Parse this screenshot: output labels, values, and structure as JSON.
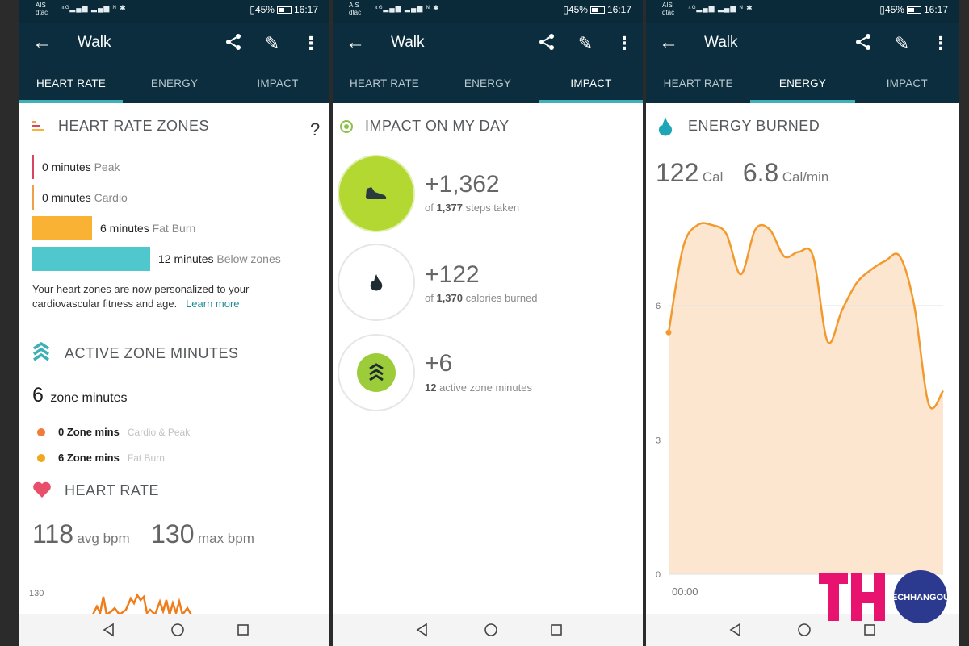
{
  "status": {
    "carrier1": "AIS",
    "carrier2": "dtac",
    "battery": "45%",
    "time": "16:17"
  },
  "screens": [
    {
      "title": "Walk",
      "tabs": [
        "HEART RATE",
        "ENERGY",
        "IMPACT"
      ],
      "active_tab": 0,
      "heart_rate_zones": {
        "title": "HEART RATE ZONES",
        "help": "?",
        "zones": [
          {
            "value": "0 minutes",
            "label": "Peak",
            "color": "#d9455f"
          },
          {
            "value": "0 minutes",
            "label": "Cardio",
            "color": "#f0a04b"
          },
          {
            "value": "6 minutes",
            "label": "Fat Burn",
            "color": "#f9b233"
          },
          {
            "value": "12 minutes",
            "label": "Below zones",
            "color": "#4fc7cc"
          }
        ],
        "note": "Your heart zones are now personalized to your cardiovascular fitness and age.",
        "learn_more": "Learn more"
      },
      "active_zone": {
        "title": "ACTIVE ZONE MINUTES",
        "count": "6",
        "count_label": "zone minutes",
        "items": [
          {
            "value": "0 Zone mins",
            "label": "Cardio & Peak",
            "color": "#f07c3a"
          },
          {
            "value": "6 Zone mins",
            "label": "Fat Burn",
            "color": "#f0a81c"
          }
        ]
      },
      "heart_rate": {
        "title": "HEART RATE",
        "avg": "118",
        "avg_unit": "avg bpm",
        "max": "130",
        "max_unit": "max bpm",
        "axis_label": "130"
      }
    },
    {
      "title": "Walk",
      "tabs": [
        "HEART RATE",
        "ENERGY",
        "IMPACT"
      ],
      "active_tab": 2,
      "impact": {
        "title": "IMPACT ON MY DAY",
        "items": [
          {
            "value": "+1,362",
            "sub_bold": "1,377",
            "sub_pre": "of ",
            "sub_post": " steps taken",
            "icon": "shoe-icon"
          },
          {
            "value": "+122",
            "sub_bold": "1,370",
            "sub_pre": "of ",
            "sub_post": " calories burned",
            "icon": "flame-icon"
          },
          {
            "value": "+6",
            "sub_bold": "12",
            "sub_pre": "",
            "sub_post": " active zone minutes",
            "icon": "zone-chevrons-icon"
          }
        ]
      }
    },
    {
      "title": "Walk",
      "tabs": [
        "HEART RATE",
        "ENERGY",
        "IMPACT"
      ],
      "active_tab": 1,
      "energy": {
        "title": "ENERGY BURNED",
        "cal": "122",
        "cal_unit": "Cal",
        "rate": "6.8",
        "rate_unit": "Cal/min",
        "x_label": "00:00"
      }
    }
  ],
  "chart_data": {
    "type": "area",
    "title": "",
    "xlabel": "",
    "ylabel": "",
    "y_ticks": [
      "6",
      "3",
      "0"
    ],
    "ylim": [
      0,
      8
    ],
    "x_label_start": "00:00",
    "values": [
      5.4,
      7.3,
      7.8,
      7.8,
      7.6,
      6.7,
      7.7,
      7.7,
      7.1,
      7.2,
      7.1,
      5.2,
      5.9,
      6.5,
      6.8,
      7.0,
      7.1,
      6.0,
      3.8,
      4.1
    ],
    "color": "#f29a2e",
    "fill": "#fde6cf"
  },
  "watermark": {
    "letters": "TH",
    "text": "TECHHANGOUT"
  }
}
